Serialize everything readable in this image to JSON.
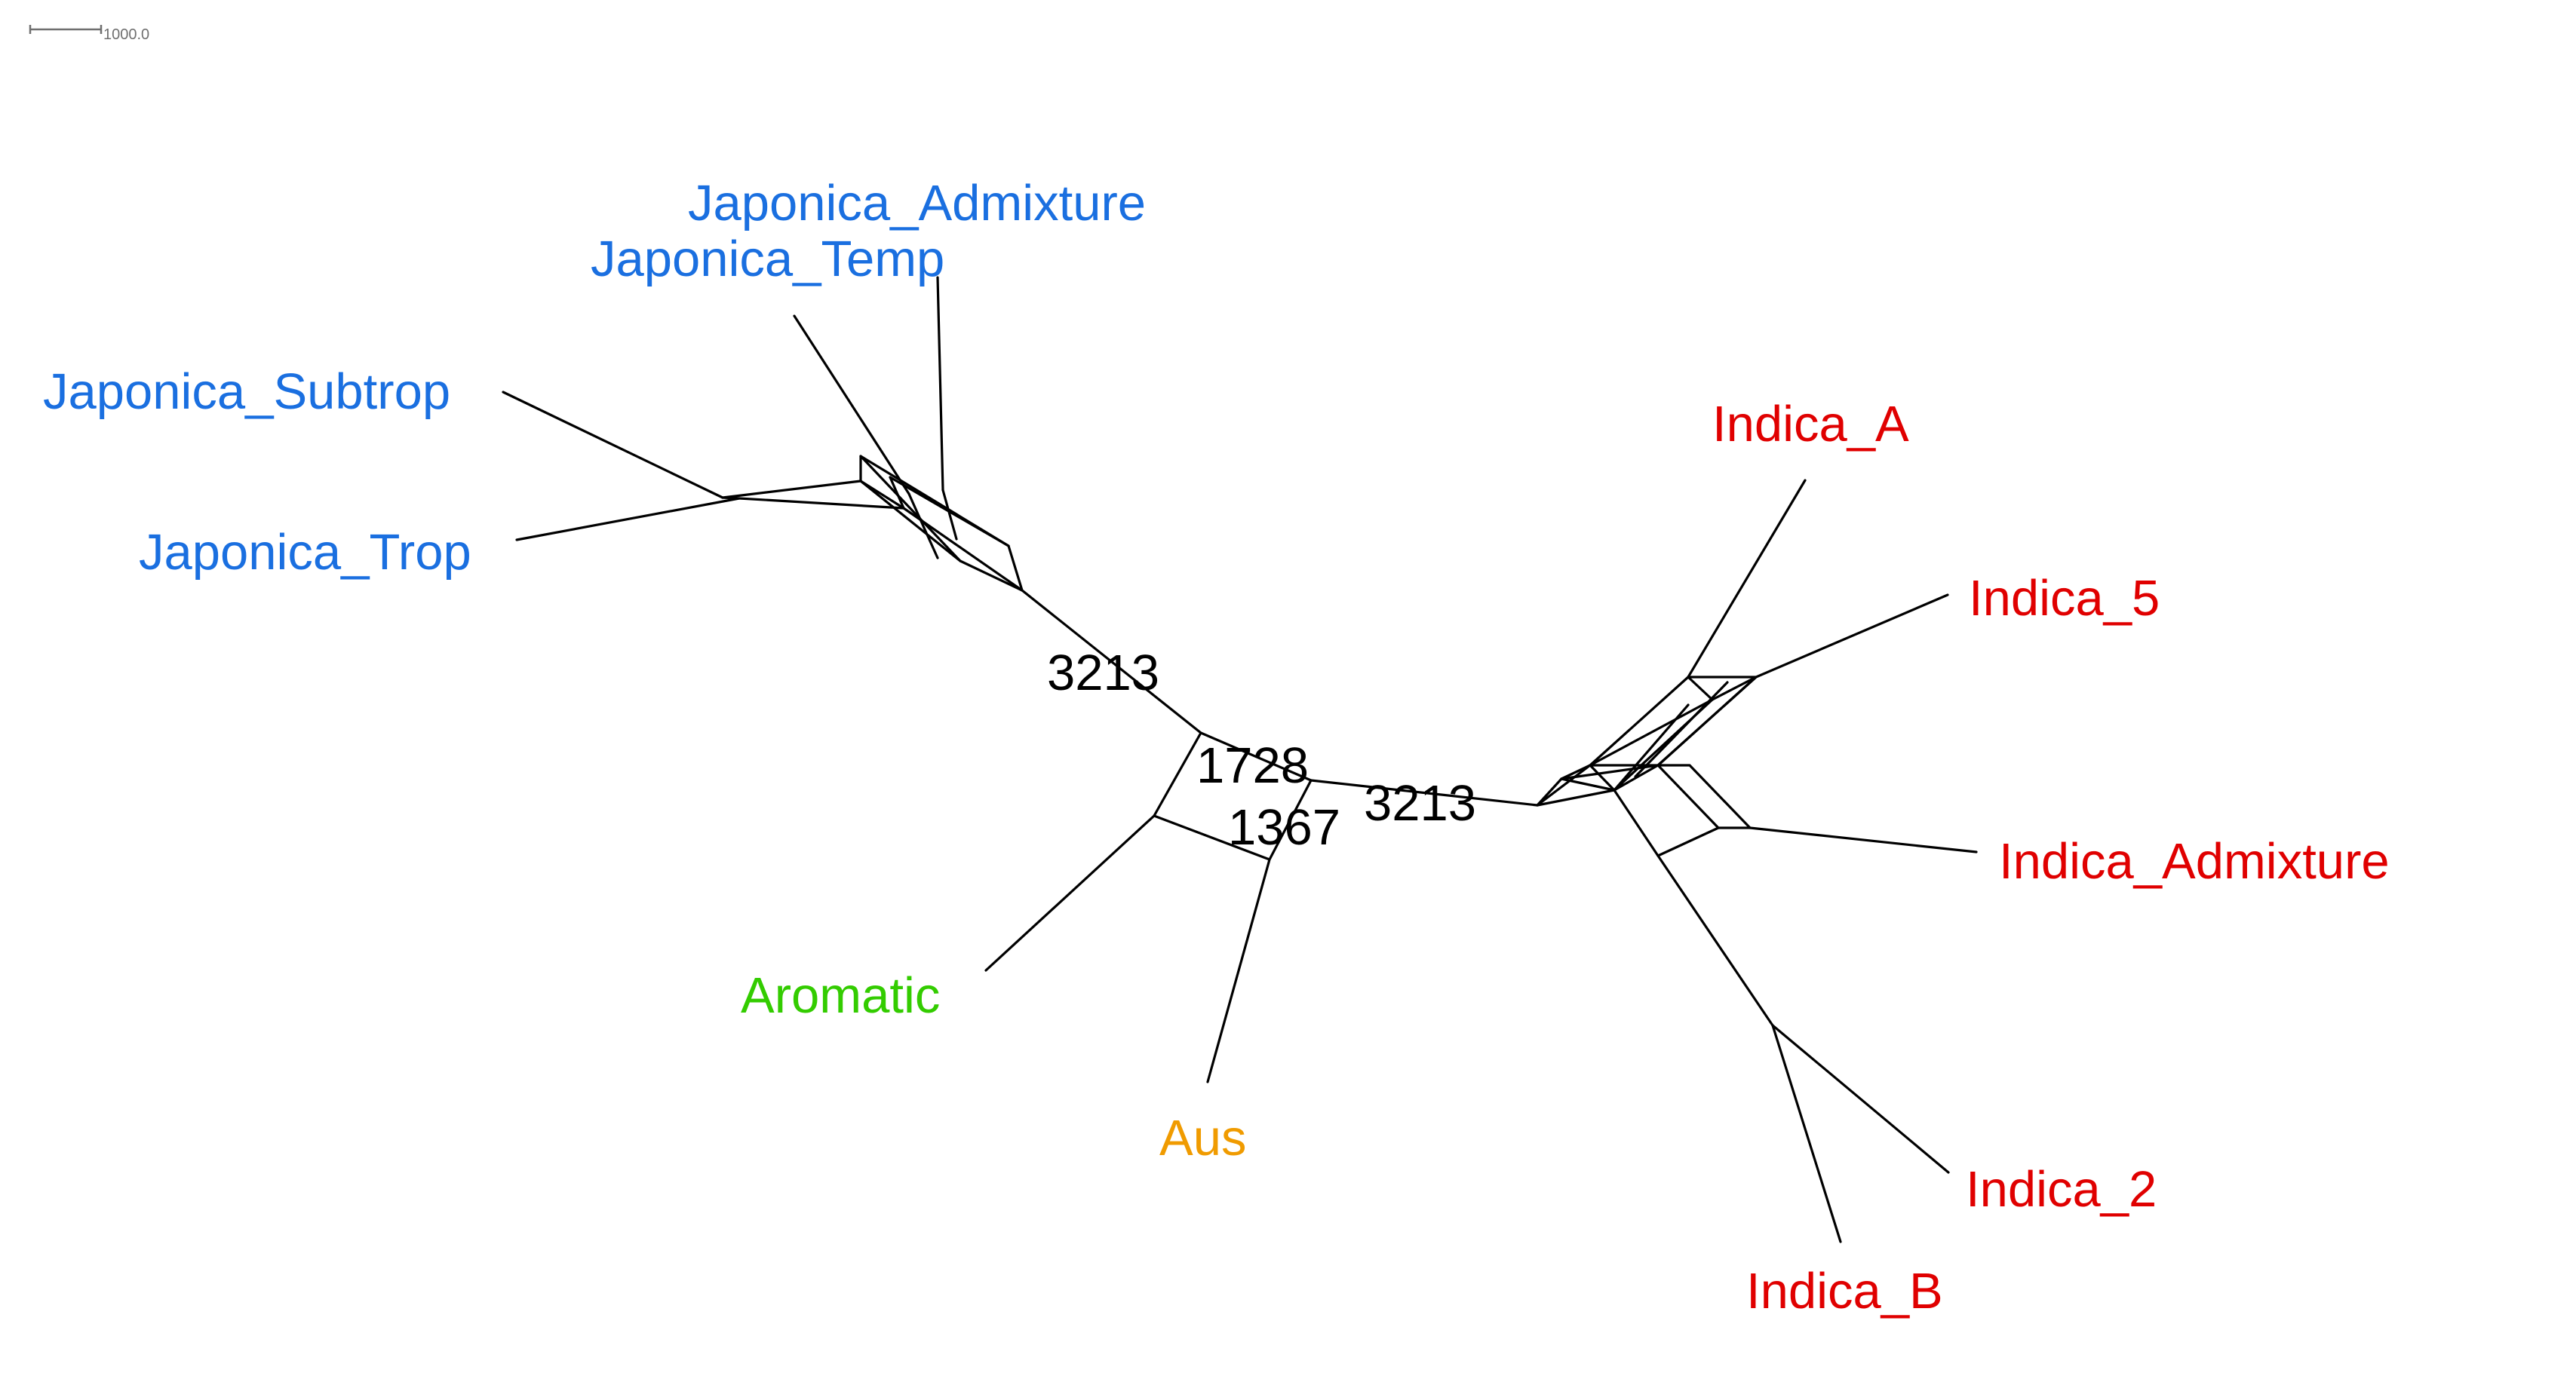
{
  "scale_bar": {
    "label": "1000.0"
  },
  "colors": {
    "japonica": "#1a6fe0",
    "indica": "#e00000",
    "aromatic": "#33cc00",
    "aus": "#f09b00",
    "edge": "#000000",
    "scale": "#6f6f6f"
  },
  "taxa": {
    "japonica_admixture": "Japonica_Admixture",
    "japonica_temp": "Japonica_Temp",
    "japonica_subtrop": "Japonica_Subtrop",
    "japonica_trop": "Japonica_Trop",
    "indica_a": "Indica_A",
    "indica_5": "Indica_5",
    "indica_admixture": "Indica_Admixture",
    "indica_2": "Indica_2",
    "indica_b": "Indica_B",
    "aromatic": "Aromatic",
    "aus": "Aus"
  },
  "support_values": {
    "japonica_split": "3213",
    "aromatic_split": "1728",
    "aus_split": "1367",
    "indica_split": "3213"
  }
}
